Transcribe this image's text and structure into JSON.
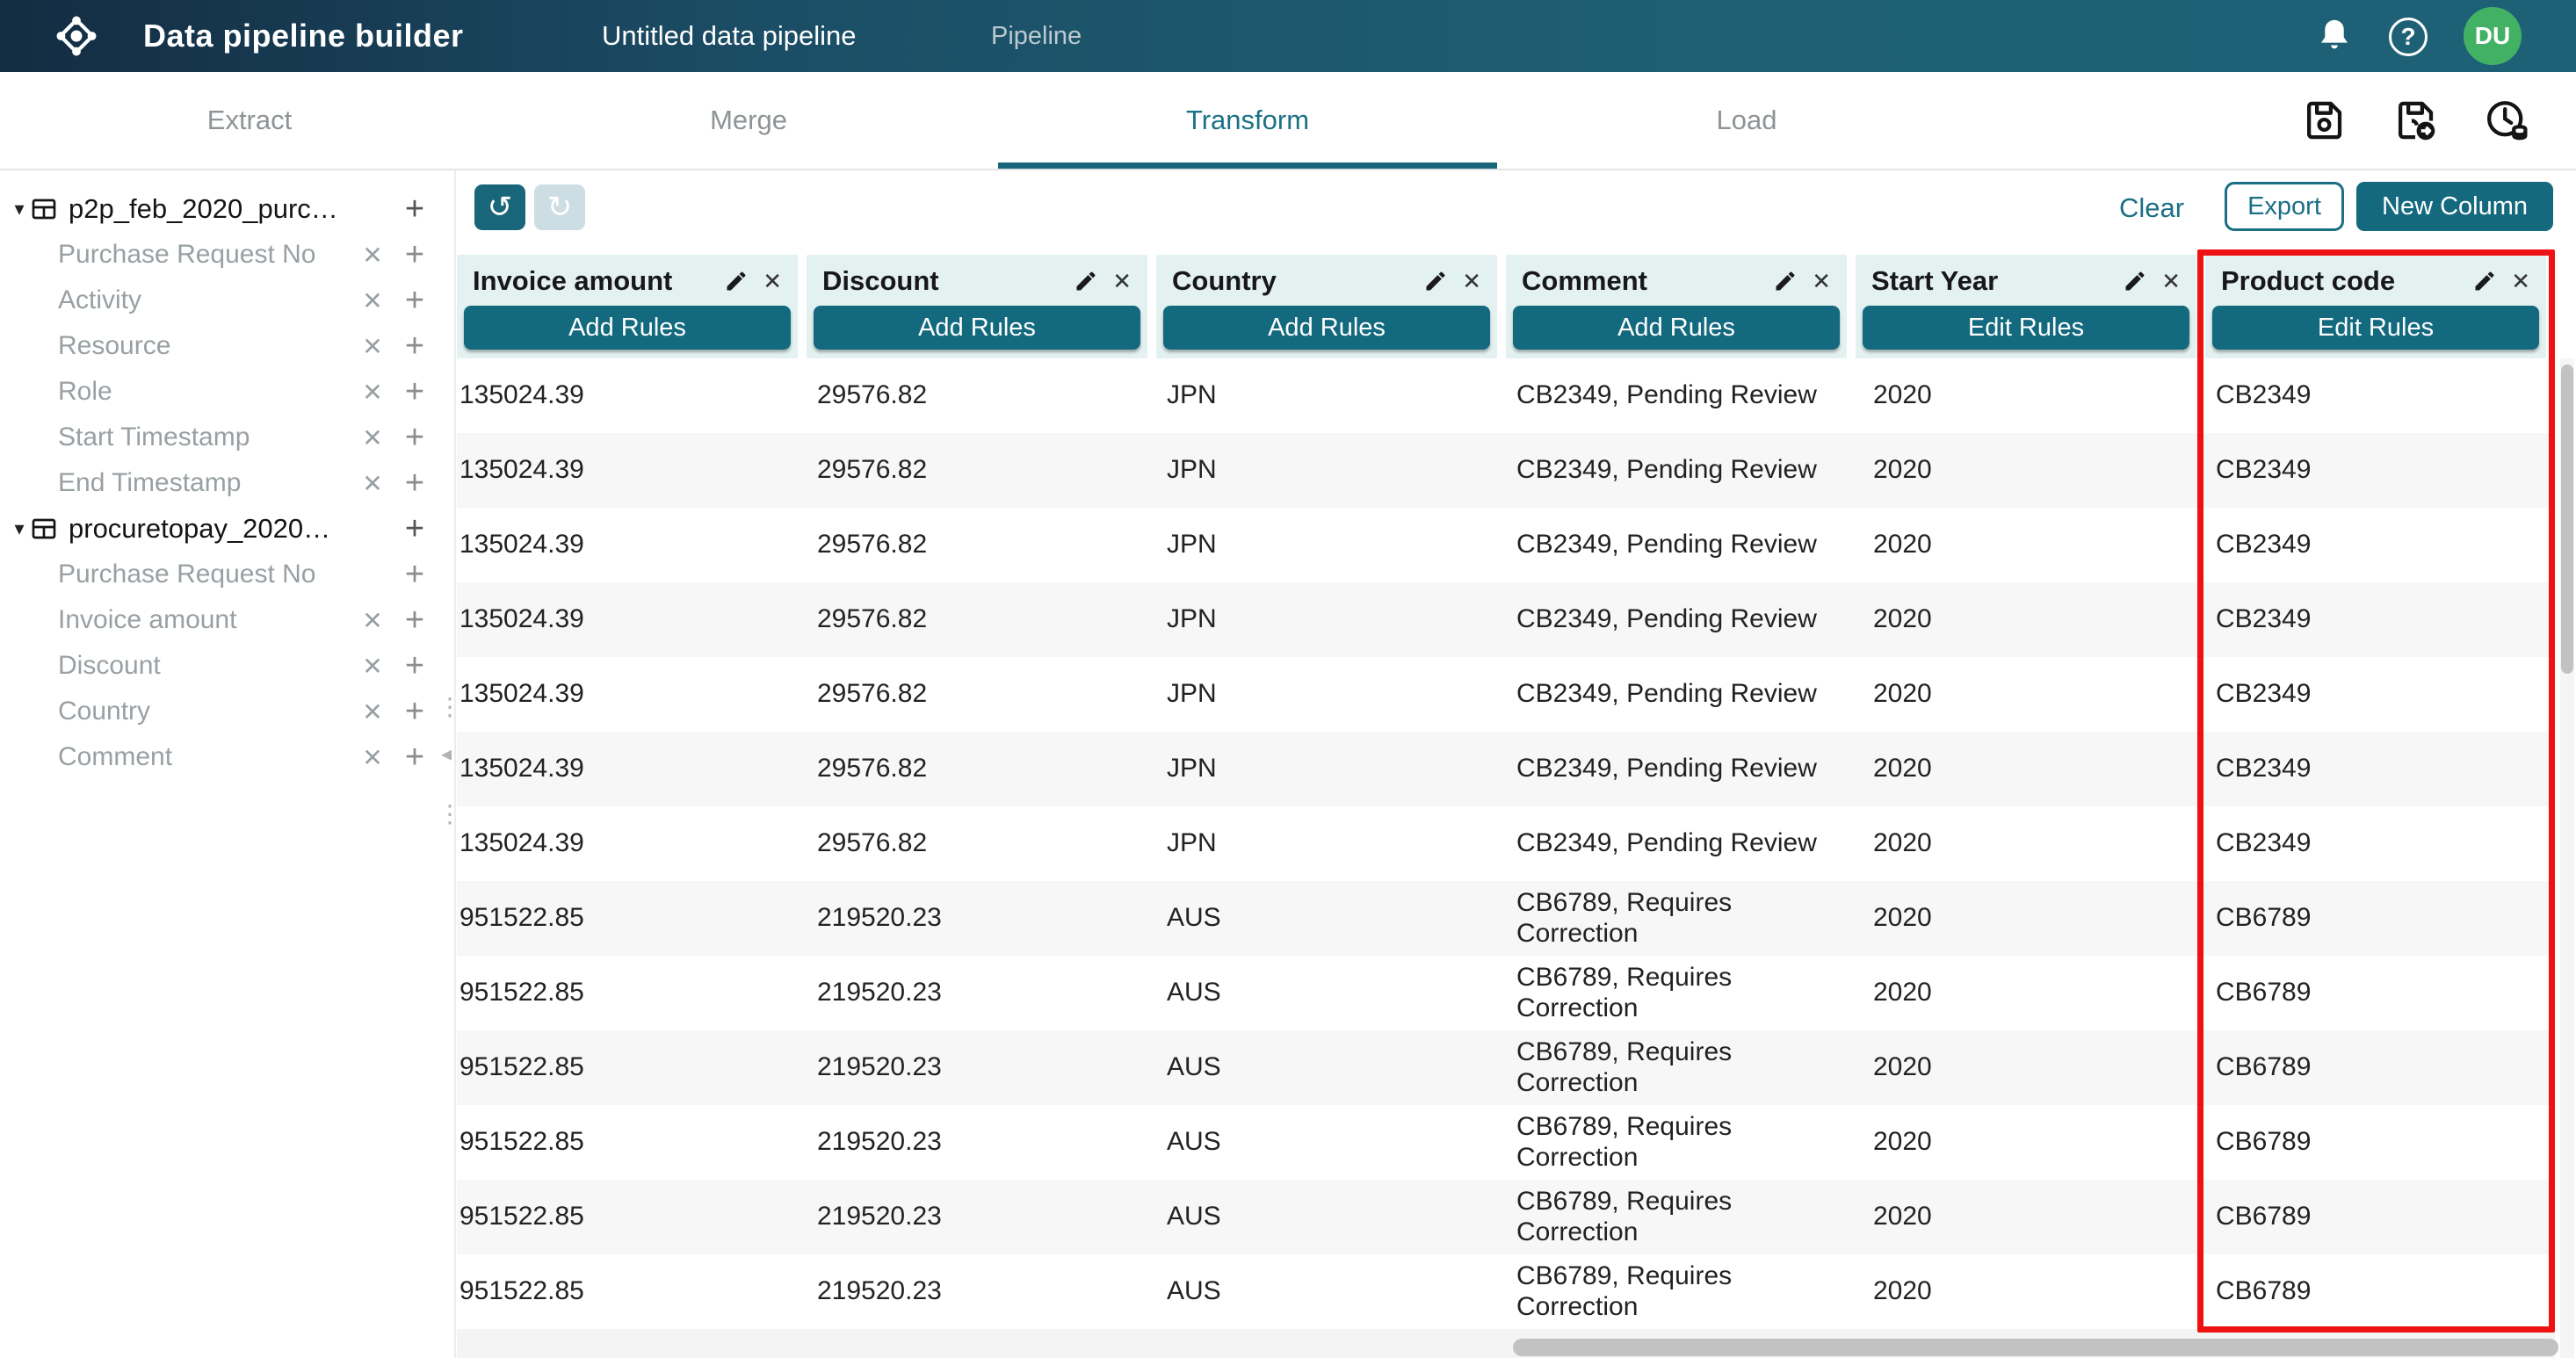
{
  "header": {
    "app_title": "Data pipeline builder",
    "pipeline_name": "Untitled data pipeline",
    "nav_pipeline": "Pipeline",
    "avatar_initials": "DU"
  },
  "tabs": {
    "items": [
      {
        "label": "Extract",
        "active": false
      },
      {
        "label": "Merge",
        "active": false
      },
      {
        "label": "Transform",
        "active": true
      },
      {
        "label": "Load",
        "active": false
      }
    ]
  },
  "toolbar": {
    "clear": "Clear",
    "export": "Export",
    "new_column": "New Column"
  },
  "icons": {
    "caret_down": "▾",
    "close": "✕",
    "add": "+",
    "undo": "↺",
    "redo": "↻",
    "dots": "⋮",
    "collapse": "◂",
    "question": "?"
  },
  "sidebar": {
    "groups": [
      {
        "name": "p2p_feb_2020_purc…",
        "fields": [
          {
            "label": "Purchase Request No",
            "removable": true
          },
          {
            "label": "Activity",
            "removable": true
          },
          {
            "label": "Resource",
            "removable": true
          },
          {
            "label": "Role",
            "removable": true
          },
          {
            "label": "Start Timestamp",
            "removable": true
          },
          {
            "label": "End Timestamp",
            "removable": true
          }
        ]
      },
      {
        "name": "procuretopay_2020…",
        "fields": [
          {
            "label": "Purchase Request No",
            "removable": false
          },
          {
            "label": "Invoice amount",
            "removable": true
          },
          {
            "label": "Discount",
            "removable": true
          },
          {
            "label": "Country",
            "removable": true
          },
          {
            "label": "Comment",
            "removable": true
          }
        ]
      }
    ]
  },
  "table": {
    "columns": [
      {
        "name": "Invoice amount",
        "rule_button": "Add Rules",
        "highlighted": false
      },
      {
        "name": "Discount",
        "rule_button": "Add Rules",
        "highlighted": false
      },
      {
        "name": "Country",
        "rule_button": "Add Rules",
        "highlighted": false
      },
      {
        "name": "Comment",
        "rule_button": "Add Rules",
        "highlighted": false
      },
      {
        "name": "Start Year",
        "rule_button": "Edit Rules",
        "highlighted": false
      },
      {
        "name": "Product code",
        "rule_button": "Edit Rules",
        "highlighted": true
      }
    ],
    "rows": [
      [
        "135024.39",
        "29576.82",
        "JPN",
        "CB2349, Pending Review",
        "2020",
        "CB2349"
      ],
      [
        "135024.39",
        "29576.82",
        "JPN",
        "CB2349, Pending Review",
        "2020",
        "CB2349"
      ],
      [
        "135024.39",
        "29576.82",
        "JPN",
        "CB2349, Pending Review",
        "2020",
        "CB2349"
      ],
      [
        "135024.39",
        "29576.82",
        "JPN",
        "CB2349, Pending Review",
        "2020",
        "CB2349"
      ],
      [
        "135024.39",
        "29576.82",
        "JPN",
        "CB2349, Pending Review",
        "2020",
        "CB2349"
      ],
      [
        "135024.39",
        "29576.82",
        "JPN",
        "CB2349, Pending Review",
        "2020",
        "CB2349"
      ],
      [
        "135024.39",
        "29576.82",
        "JPN",
        "CB2349, Pending Review",
        "2020",
        "CB2349"
      ],
      [
        "951522.85",
        "219520.23",
        "AUS",
        "CB6789, Requires Correction",
        "2020",
        "CB6789"
      ],
      [
        "951522.85",
        "219520.23",
        "AUS",
        "CB6789, Requires Correction",
        "2020",
        "CB6789"
      ],
      [
        "951522.85",
        "219520.23",
        "AUS",
        "CB6789, Requires Correction",
        "2020",
        "CB6789"
      ],
      [
        "951522.85",
        "219520.23",
        "AUS",
        "CB6789, Requires Correction",
        "2020",
        "CB6789"
      ],
      [
        "951522.85",
        "219520.23",
        "AUS",
        "CB6789, Requires Correction",
        "2020",
        "CB6789"
      ],
      [
        "951522.85",
        "219520.23",
        "AUS",
        "CB6789, Requires Correction",
        "2020",
        "CB6789"
      ]
    ]
  },
  "colors": {
    "accent_teal": "#15697e",
    "header_cell_bg": "#e3f1f1",
    "row_alt_bg": "#f7f7f7",
    "highlight_red": "#ee1212",
    "avatar_green": "#43b163"
  }
}
